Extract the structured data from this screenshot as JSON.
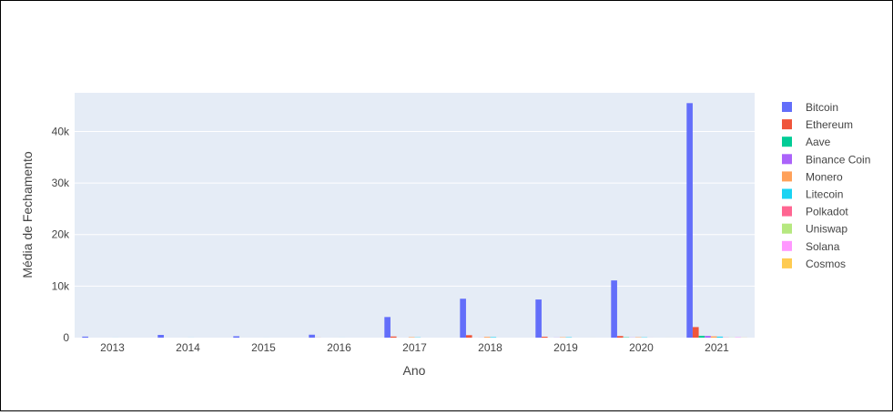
{
  "chart_data": {
    "type": "bar",
    "xlabel": "Ano",
    "ylabel": "Média de Fechamento",
    "categories": [
      "2013",
      "2014",
      "2015",
      "2016",
      "2017",
      "2018",
      "2019",
      "2020",
      "2021"
    ],
    "ylim": [
      0,
      47500
    ],
    "yticks": [
      0,
      10000,
      20000,
      30000,
      40000
    ],
    "ytick_labels": [
      "0",
      "10k",
      "20k",
      "30k",
      "40k"
    ],
    "grid": true,
    "legend_position": "right",
    "series": [
      {
        "name": "Bitcoin",
        "color": "#636efa",
        "values": [
          200,
          530,
          270,
          570,
          4000,
          7550,
          7400,
          11100,
          45500
        ]
      },
      {
        "name": "Ethereum",
        "color": "#ef553b",
        "values": [
          null,
          null,
          1,
          12,
          220,
          480,
          180,
          310,
          2050
        ]
      },
      {
        "name": "Aave",
        "color": "#00cc96",
        "values": [
          null,
          null,
          null,
          null,
          null,
          null,
          null,
          60,
          360
        ]
      },
      {
        "name": "Binance Coin",
        "color": "#ab63fa",
        "values": [
          null,
          null,
          null,
          null,
          2,
          10,
          20,
          25,
          330
        ]
      },
      {
        "name": "Monero",
        "color": "#ffa15a",
        "values": [
          null,
          2,
          1,
          2,
          90,
          150,
          75,
          80,
          250
        ]
      },
      {
        "name": "Litecoin",
        "color": "#19d3f3",
        "values": [
          6,
          8,
          3,
          4,
          50,
          100,
          75,
          60,
          200
        ]
      },
      {
        "name": "Polkadot",
        "color": "#ff6692",
        "values": [
          null,
          null,
          null,
          null,
          null,
          null,
          null,
          5,
          30
        ]
      },
      {
        "name": "Uniswap",
        "color": "#b6e880",
        "values": [
          null,
          null,
          null,
          null,
          null,
          null,
          null,
          3,
          25
        ]
      },
      {
        "name": "Solana",
        "color": "#ff97ff",
        "values": [
          null,
          null,
          null,
          null,
          null,
          null,
          null,
          2,
          80
        ]
      },
      {
        "name": "Cosmos",
        "color": "#fecb52",
        "values": [
          null,
          null,
          null,
          null,
          null,
          null,
          4,
          5,
          20
        ]
      }
    ]
  }
}
